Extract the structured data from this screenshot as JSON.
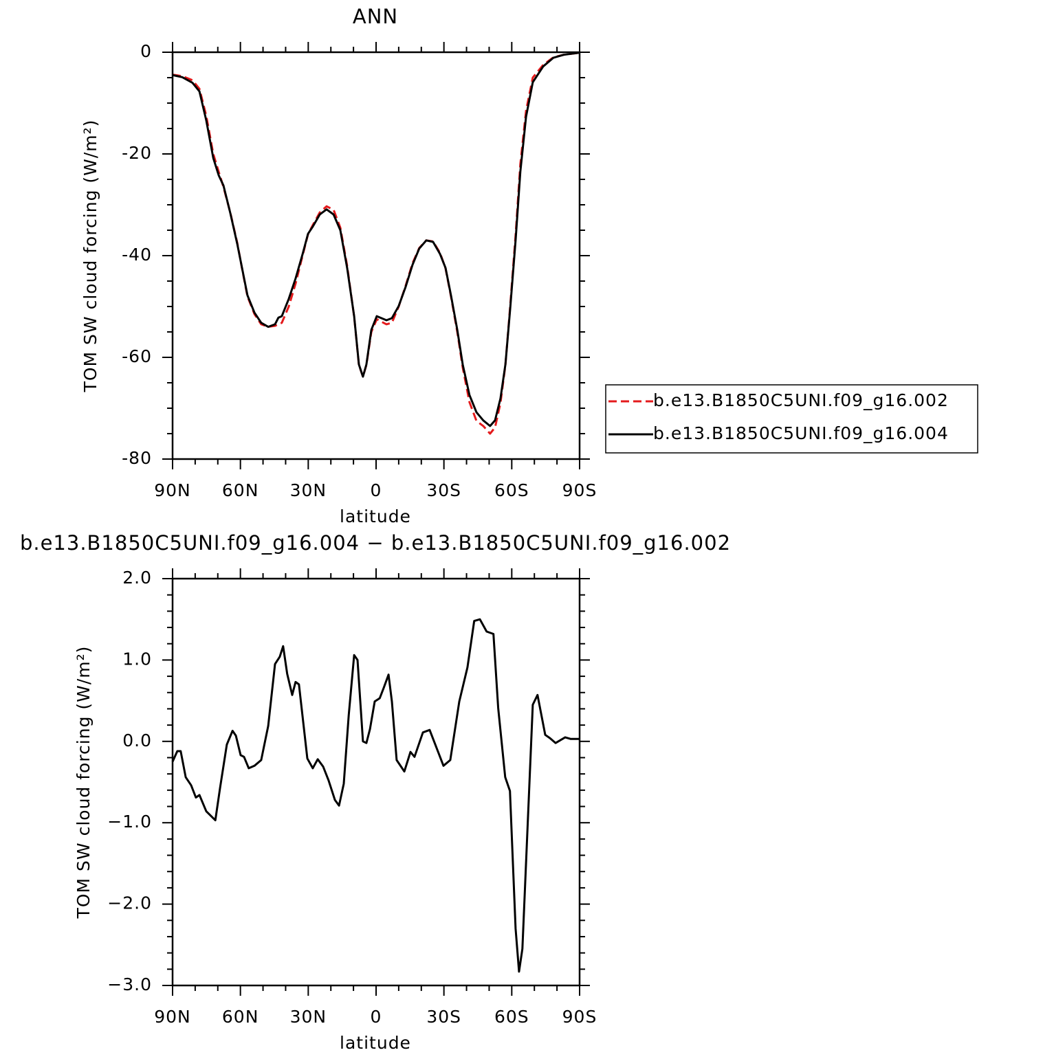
{
  "chart_data": [
    {
      "type": "line",
      "title": "ANN",
      "xlabel": "latitude",
      "ylabel": "TOM SW cloud forcing (W/m²)",
      "xlim": [
        90,
        -90
      ],
      "xticks": [
        {
          "value": 90,
          "label": "90N"
        },
        {
          "value": 60,
          "label": "60N"
        },
        {
          "value": 30,
          "label": "30N"
        },
        0,
        {
          "value": -30,
          "label": "30S"
        },
        {
          "value": -60,
          "label": "60S"
        },
        {
          "value": -90,
          "label": "90S"
        }
      ],
      "ylim": [
        -80,
        0
      ],
      "yticks": [
        0,
        -20,
        -40,
        -60,
        -80
      ],
      "legend": "right",
      "x": [
        90,
        85.7,
        81.2,
        78.1,
        75.1,
        72,
        69.6,
        67.5,
        64.5,
        61.4,
        59.3,
        56.9,
        53.8,
        50.8,
        47.7,
        44.7,
        43.2,
        41.7,
        38.6,
        35.6,
        32.5,
        30.1,
        28,
        24.9,
        21.9,
        18.8,
        15.8,
        12.8,
        9.7,
        7.6,
        5.8,
        4.3,
        2.1,
        -0.3,
        -2.4,
        -4.6,
        -7,
        -10,
        -13,
        -16.1,
        -19.1,
        -22.2,
        -25.2,
        -28.3,
        -30.7,
        -33.1,
        -35.9,
        -38.3,
        -41.3,
        -44.4,
        -47.4,
        -50.4,
        -52.6,
        -55,
        -57.2,
        -59.3,
        -61.7,
        -63.8,
        -66.3,
        -69.3,
        -73.9,
        -78.4,
        -83,
        -90
      ],
      "series": [
        {
          "name": "b.e13.B1850C5UNI.f09_g16.002",
          "color": "#e41a1c",
          "linestyle": "dashed",
          "values": [
            -4.4,
            -4.7,
            -5.5,
            -7.2,
            -12.5,
            -20,
            -23.5,
            -26.5,
            -31.5,
            -37.5,
            -42.5,
            -48,
            -51.5,
            -53.5,
            -54,
            -53.8,
            -53.5,
            -53.2,
            -50,
            -45.5,
            -40,
            -35.8,
            -34,
            -31.5,
            -30.3,
            -31,
            -34.5,
            -42,
            -52,
            -61.5,
            -63.8,
            -61.5,
            -55,
            -52.5,
            -53,
            -53.5,
            -53.2,
            -50,
            -46,
            -41.5,
            -38.5,
            -37,
            -37.2,
            -39.5,
            -42.5,
            -48,
            -55,
            -62,
            -68.8,
            -72.5,
            -73.5,
            -75,
            -73.8,
            -69,
            -61.5,
            -50,
            -36,
            -22,
            -11.5,
            -5,
            -2.5,
            -1,
            -0.5,
            -0.1
          ]
        },
        {
          "name": "b.e13.B1850C5UNI.f09_g16.004",
          "color": "#000000",
          "linestyle": "solid",
          "values": [
            -4.5,
            -4.9,
            -6,
            -7.7,
            -13.4,
            -20.8,
            -24.2,
            -26.2,
            -31.6,
            -37.7,
            -42.4,
            -47.8,
            -51.2,
            -53.2,
            -54,
            -53.5,
            -52.2,
            -51.9,
            -48.5,
            -44.5,
            -39.7,
            -35.7,
            -34.3,
            -31.9,
            -30.9,
            -31.9,
            -35,
            -42.4,
            -51.9,
            -61.4,
            -63.8,
            -61.4,
            -54.6,
            -51.9,
            -52.3,
            -52.7,
            -52.3,
            -49.9,
            -46.2,
            -41.8,
            -38.6,
            -37,
            -37.3,
            -39.7,
            -42.4,
            -47.8,
            -54.6,
            -61.4,
            -67.4,
            -70.8,
            -72.4,
            -73.5,
            -72.4,
            -68.1,
            -61.4,
            -50.5,
            -37,
            -23.5,
            -12.7,
            -5.9,
            -2.8,
            -1.1,
            -0.5,
            -0.1
          ]
        }
      ]
    },
    {
      "type": "line",
      "title": "b.e13.B1850C5UNI.f09_g16.004 − b.e13.B1850C5UNI.f09_g16.002",
      "xlabel": "latitude",
      "ylabel": "TOM SW cloud forcing (W/m²)",
      "xlim": [
        90,
        -90
      ],
      "xticks": [
        {
          "value": 90,
          "label": "90N"
        },
        {
          "value": 60,
          "label": "60N"
        },
        {
          "value": 30,
          "label": "30N"
        },
        0,
        {
          "value": -30,
          "label": "30S"
        },
        {
          "value": -60,
          "label": "60S"
        },
        {
          "value": -90,
          "label": "90S"
        }
      ],
      "ylim": [
        -3,
        2
      ],
      "yticks": [
        {
          "value": 2,
          "label": "2.0"
        },
        {
          "value": 1,
          "label": "1.0"
        },
        {
          "value": 0,
          "label": "0.0"
        },
        {
          "value": -1,
          "label": "−1.0"
        },
        {
          "value": -2,
          "label": "−2.0"
        },
        {
          "value": -3,
          "label": "−3.0"
        }
      ],
      "color": "#000000",
      "x": [
        90,
        87.9,
        86.4,
        84.2,
        81.8,
        79.7,
        78.1,
        75.1,
        71.1,
        69,
        66,
        63.5,
        62,
        59.9,
        58.4,
        56.3,
        53.8,
        50.8,
        47.7,
        44.7,
        42.6,
        41.1,
        39.3,
        37.1,
        35.6,
        34.1,
        30.4,
        28,
        25.8,
        23.4,
        21,
        18.2,
        16.4,
        14.3,
        12.1,
        9.7,
        8.2,
        5.8,
        4.3,
        2.7,
        0.6,
        -1.6,
        -3.4,
        -5.5,
        -7,
        -9.1,
        -12.5,
        -15.2,
        -17,
        -20.7,
        -23.7,
        -29.8,
        -32.8,
        -36.8,
        -40.4,
        -43.4,
        -45.9,
        -48.9,
        -51.9,
        -54,
        -57.1,
        -59.2,
        -61.7,
        -63.2,
        -64.7,
        -69.3,
        -71.4,
        -74.8,
        -76.9,
        -79.4,
        -83.6,
        -86,
        -90
      ],
      "values": [
        -0.25,
        -0.12,
        -0.12,
        -0.44,
        -0.54,
        -0.69,
        -0.66,
        -0.86,
        -0.97,
        -0.57,
        -0.04,
        0.13,
        0.07,
        -0.17,
        -0.19,
        -0.33,
        -0.3,
        -0.23,
        0.19,
        0.95,
        1.04,
        1.17,
        0.83,
        0.57,
        0.73,
        0.7,
        -0.21,
        -0.33,
        -0.22,
        -0.31,
        -0.48,
        -0.72,
        -0.79,
        -0.52,
        0.32,
        1.06,
        1.0,
        0,
        -0.02,
        0.15,
        0.49,
        0.53,
        0.66,
        0.82,
        0.49,
        -0.23,
        -0.37,
        -0.13,
        -0.19,
        0.11,
        0.14,
        -0.3,
        -0.23,
        0.49,
        0.91,
        1.48,
        1.5,
        1.35,
        1.32,
        0.41,
        -0.44,
        -0.61,
        -2.3,
        -2.83,
        -2.55,
        0.45,
        0.57,
        0.08,
        0.04,
        -0.02,
        0.05,
        0.03,
        0.03
      ]
    }
  ]
}
